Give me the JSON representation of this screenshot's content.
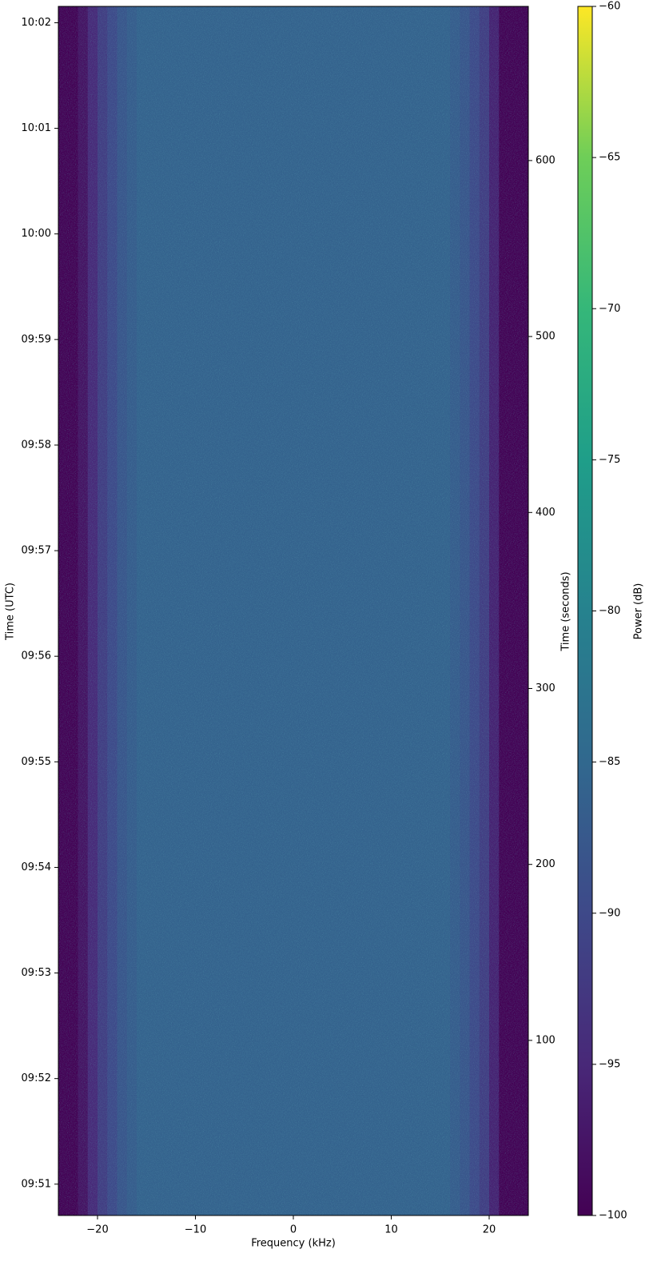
{
  "chart_data": {
    "type": "spectrogram",
    "colormap": "viridis",
    "xlabel": "Frequency (kHz)",
    "ylabel": "Time (UTC)",
    "y2label": "Time (seconds)",
    "xlim": [
      -24,
      24
    ],
    "xticks": [
      {
        "value": -20,
        "label": "−20"
      },
      {
        "value": -10,
        "label": "−10"
      },
      0,
      10,
      20
    ],
    "ylim": [
      0.5,
      687.6
    ],
    "yticks": [
      {
        "value": 18.3,
        "label": "09:51"
      },
      {
        "value": 78.3,
        "label": "09:52"
      },
      {
        "value": 138.3,
        "label": "09:53"
      },
      {
        "value": 198.3,
        "label": "09:54"
      },
      {
        "value": 258.3,
        "label": "09:55"
      },
      {
        "value": 318.3,
        "label": "09:56"
      },
      {
        "value": 378.3,
        "label": "09:57"
      },
      {
        "value": 438.3,
        "label": "09:58"
      },
      {
        "value": 498.3,
        "label": "09:59"
      },
      {
        "value": 558.3,
        "label": "10:00"
      },
      {
        "value": 618.3,
        "label": "10:01"
      },
      {
        "value": 678.3,
        "label": "10:02"
      }
    ],
    "y2lim": [
      0.5,
      687.6
    ],
    "y2ticks": [
      100,
      200,
      300,
      400,
      500,
      600
    ],
    "x": [
      -23.5,
      -22.5,
      -21.5,
      -20.5,
      -19.5,
      -18.5,
      -17.5,
      -16.5,
      -15.5,
      -14.5,
      -13.5,
      -12.5,
      -11.5,
      -10.5,
      -9.5,
      -8.5,
      -7.5,
      -6.5,
      -5.5,
      -4.5,
      -3.5,
      -2.5,
      -1.5,
      -0.5,
      0.5,
      1.5,
      2.5,
      3.5,
      4.5,
      5.5,
      6.5,
      7.5,
      8.5,
      9.5,
      10.5,
      11.5,
      12.5,
      13.5,
      14.5,
      15.5,
      16.5,
      17.5,
      18.5,
      19.5,
      20.5,
      21.5,
      22.5,
      23.5
    ],
    "values": [
      -100,
      -100,
      -98,
      -95,
      -92,
      -90,
      -88,
      -87,
      -86,
      -86,
      -86,
      -86,
      -86,
      -86,
      -86,
      -86,
      -86,
      -86,
      -86,
      -86,
      -86,
      -86,
      -86,
      -86,
      -86,
      -86,
      -86,
      -86,
      -86,
      -86,
      -86,
      -86,
      -86,
      -86,
      -86,
      -86,
      -86,
      -86,
      -86,
      -86,
      -87,
      -88,
      -90,
      -92,
      -96,
      -100,
      -100,
      -100
    ],
    "colorbar": {
      "label": "Power (dB)",
      "lim": [
        -100,
        -60
      ],
      "ticks": [
        {
          "value": -100,
          "label": "−100"
        },
        {
          "value": -95,
          "label": "−95"
        },
        {
          "value": -90,
          "label": "−90"
        },
        {
          "value": -85,
          "label": "−85"
        },
        {
          "value": -80,
          "label": "−80"
        },
        {
          "value": -75,
          "label": "−75"
        },
        {
          "value": -70,
          "label": "−70"
        },
        {
          "value": -65,
          "label": "−65"
        },
        {
          "value": -60,
          "label": "−60"
        }
      ]
    }
  }
}
